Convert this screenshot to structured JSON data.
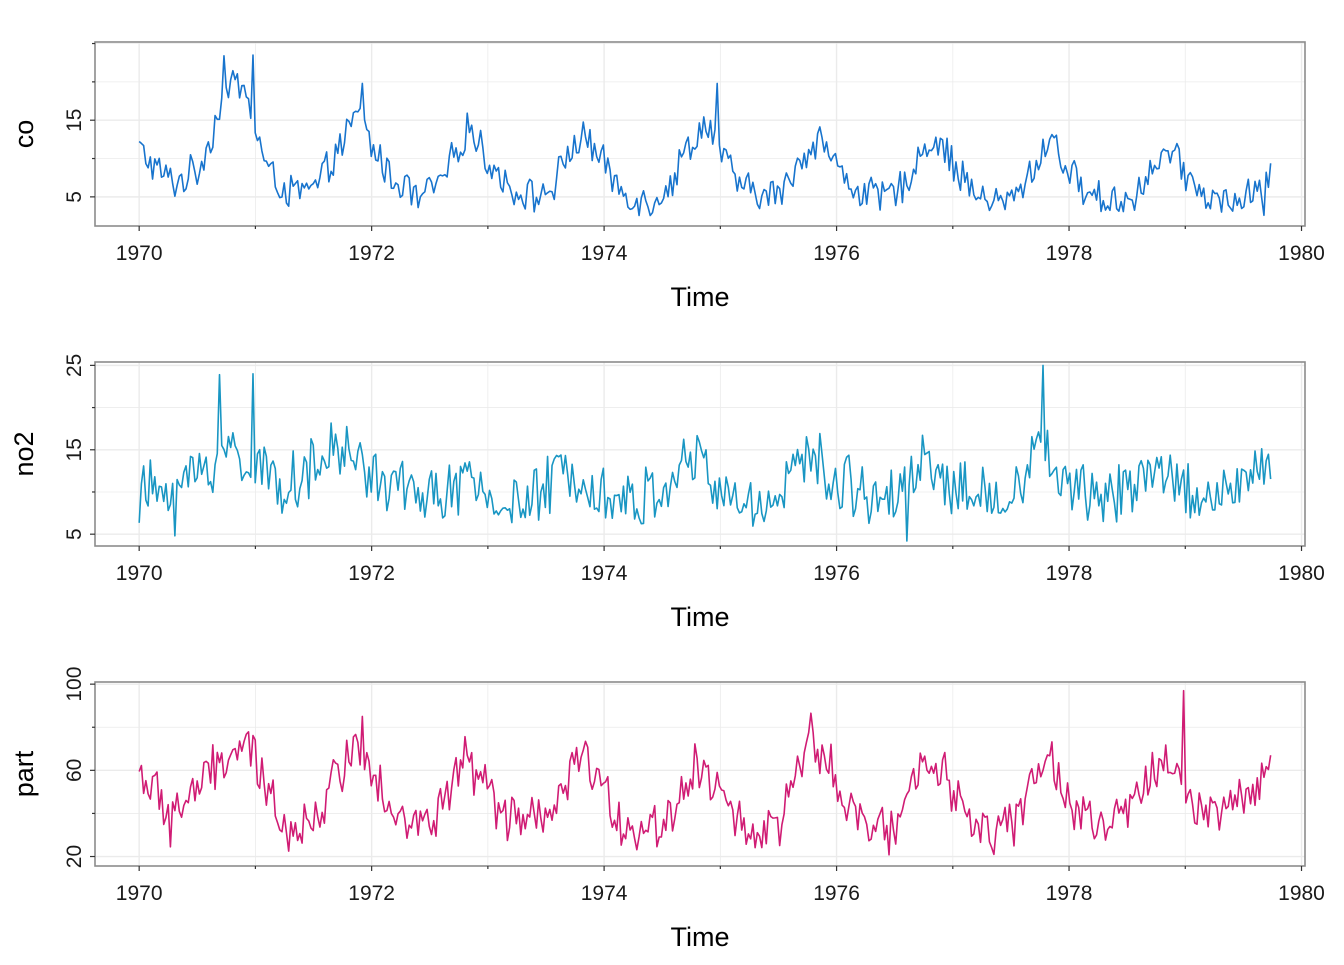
{
  "chart_data": [
    {
      "type": "line",
      "xlabel": "Time",
      "ylabel": "co",
      "xlim": [
        1969.62,
        1980.03
      ],
      "ylim": [
        1.2,
        25.2
      ],
      "x_ticks": [
        "1970",
        "1972",
        "1974",
        "1976",
        "1978",
        "1980"
      ],
      "y_ticks": [
        "5",
        "15"
      ],
      "color": "#1874cd",
      "x_start": 1970.0,
      "x_step": 0.0192,
      "keypoints": [
        [
          1970.0,
          11.5
        ],
        [
          1970.1,
          9.2
        ],
        [
          1970.3,
          6.8
        ],
        [
          1970.5,
          8.5
        ],
        [
          1970.6,
          12.0
        ],
        [
          1970.7,
          17.0
        ],
        [
          1970.8,
          20.0
        ],
        [
          1970.9,
          19.0
        ],
        [
          1971.0,
          14.0
        ],
        [
          1971.1,
          8.5
        ],
        [
          1971.3,
          5.5
        ],
        [
          1971.5,
          5.8
        ],
        [
          1971.6,
          8.0
        ],
        [
          1971.8,
          13.5
        ],
        [
          1971.9,
          16.0
        ],
        [
          1972.0,
          11.5
        ],
        [
          1972.2,
          7.0
        ],
        [
          1972.4,
          5.5
        ],
        [
          1972.6,
          6.5
        ],
        [
          1972.7,
          10.0
        ],
        [
          1972.85,
          14.5
        ],
        [
          1973.0,
          9.5
        ],
        [
          1973.2,
          6.0
        ],
        [
          1973.4,
          5.0
        ],
        [
          1973.55,
          6.0
        ],
        [
          1973.7,
          11.0
        ],
        [
          1973.85,
          13.0
        ],
        [
          1974.0,
          9.0
        ],
        [
          1974.2,
          5.0
        ],
        [
          1974.4,
          4.5
        ],
        [
          1974.55,
          6.0
        ],
        [
          1974.7,
          11.0
        ],
        [
          1974.9,
          15.0
        ],
        [
          1975.0,
          10.5
        ],
        [
          1975.2,
          6.0
        ],
        [
          1975.4,
          5.0
        ],
        [
          1975.55,
          6.0
        ],
        [
          1975.7,
          10.0
        ],
        [
          1975.85,
          13.0
        ],
        [
          1976.0,
          9.0
        ],
        [
          1976.2,
          5.5
        ],
        [
          1976.4,
          5.0
        ],
        [
          1976.55,
          6.0
        ],
        [
          1976.7,
          10.0
        ],
        [
          1976.85,
          13.0
        ],
        [
          1977.0,
          9.5
        ],
        [
          1977.2,
          5.0
        ],
        [
          1977.4,
          4.2
        ],
        [
          1977.55,
          5.0
        ],
        [
          1977.7,
          9.0
        ],
        [
          1977.85,
          13.0
        ],
        [
          1978.0,
          8.0
        ],
        [
          1978.2,
          5.0
        ],
        [
          1978.4,
          4.5
        ],
        [
          1978.55,
          5.0
        ],
        [
          1978.7,
          8.0
        ],
        [
          1978.85,
          11.0
        ],
        [
          1979.0,
          8.0
        ],
        [
          1979.2,
          4.8
        ],
        [
          1979.4,
          4.2
        ],
        [
          1979.55,
          5.0
        ],
        [
          1979.65,
          6.5
        ],
        [
          1979.75,
          8.0
        ]
      ],
      "noise_amp": 2.6,
      "clamp": [
        2.5,
        23.5
      ],
      "spikes": [
        [
          1970.72,
          23.4
        ],
        [
          1970.97,
          23.5
        ],
        [
          1971.92,
          19.8
        ],
        [
          1974.97,
          19.8
        ],
        [
          1972.4,
          3.6
        ],
        [
          1979.67,
          2.6
        ]
      ]
    },
    {
      "type": "line",
      "xlabel": "Time",
      "ylabel": "no2",
      "xlim": [
        1969.62,
        1980.03
      ],
      "ylim": [
        3.6,
        25.4
      ],
      "x_ticks": [
        "1970",
        "1972",
        "1974",
        "1976",
        "1978",
        "1980"
      ],
      "y_ticks": [
        "5",
        "15",
        "25"
      ],
      "color": "#1996c3",
      "x_start": 1970.0,
      "x_step": 0.0192,
      "keypoints": [
        [
          1970.0,
          9.5
        ],
        [
          1970.2,
          10.5
        ],
        [
          1970.4,
          11.0
        ],
        [
          1970.6,
          13.5
        ],
        [
          1970.8,
          15.0
        ],
        [
          1971.0,
          13.0
        ],
        [
          1971.2,
          11.0
        ],
        [
          1971.4,
          11.5
        ],
        [
          1971.6,
          14.0
        ],
        [
          1971.8,
          15.0
        ],
        [
          1972.0,
          12.0
        ],
        [
          1972.3,
          10.0
        ],
        [
          1972.6,
          9.5
        ],
        [
          1972.8,
          11.0
        ],
        [
          1973.0,
          9.5
        ],
        [
          1973.2,
          8.5
        ],
        [
          1973.4,
          9.0
        ],
        [
          1973.6,
          12.0
        ],
        [
          1973.8,
          13.0
        ],
        [
          1974.0,
          10.0
        ],
        [
          1974.2,
          9.0
        ],
        [
          1974.4,
          9.5
        ],
        [
          1974.6,
          12.0
        ],
        [
          1974.8,
          14.0
        ],
        [
          1975.0,
          10.0
        ],
        [
          1975.2,
          8.0
        ],
        [
          1975.4,
          9.0
        ],
        [
          1975.6,
          12.0
        ],
        [
          1975.8,
          14.0
        ],
        [
          1976.0,
          11.0
        ],
        [
          1976.2,
          10.5
        ],
        [
          1976.4,
          9.5
        ],
        [
          1976.6,
          12.0
        ],
        [
          1976.8,
          14.0
        ],
        [
          1977.0,
          10.5
        ],
        [
          1977.2,
          9.5
        ],
        [
          1977.4,
          9.5
        ],
        [
          1977.6,
          11.5
        ],
        [
          1977.8,
          15.0
        ],
        [
          1978.0,
          10.0
        ],
        [
          1978.2,
          9.5
        ],
        [
          1978.4,
          10.0
        ],
        [
          1978.6,
          12.0
        ],
        [
          1978.8,
          13.0
        ],
        [
          1979.0,
          10.0
        ],
        [
          1979.2,
          9.5
        ],
        [
          1979.4,
          10.0
        ],
        [
          1979.6,
          12.0
        ],
        [
          1979.75,
          12.5
        ]
      ],
      "noise_amp": 4.2,
      "clamp": [
        4.6,
        24.0
      ],
      "spikes": [
        [
          1970.7,
          23.9
        ],
        [
          1970.98,
          24.0
        ],
        [
          1977.78,
          25.0
        ],
        [
          1976.6,
          4.2
        ],
        [
          1970.3,
          4.8
        ]
      ]
    },
    {
      "type": "line",
      "xlabel": "Time",
      "ylabel": "part",
      "xlim": [
        1969.62,
        1980.03
      ],
      "ylim": [
        15.6,
        101.0
      ],
      "x_ticks": [
        "1970",
        "1972",
        "1974",
        "1976",
        "1978",
        "1980"
      ],
      "y_ticks": [
        "20",
        "60",
        "100"
      ],
      "color": "#d01c74",
      "x_start": 1970.0,
      "x_step": 0.0192,
      "keypoints": [
        [
          1970.0,
          60.0
        ],
        [
          1970.1,
          52.0
        ],
        [
          1970.25,
          42.0
        ],
        [
          1970.4,
          45.0
        ],
        [
          1970.6,
          58.0
        ],
        [
          1970.8,
          68.0
        ],
        [
          1970.95,
          70.0
        ],
        [
          1971.1,
          50.0
        ],
        [
          1971.3,
          35.0
        ],
        [
          1971.5,
          36.0
        ],
        [
          1971.65,
          52.0
        ],
        [
          1971.8,
          68.0
        ],
        [
          1971.95,
          70.0
        ],
        [
          1972.1,
          50.0
        ],
        [
          1972.3,
          36.0
        ],
        [
          1972.5,
          34.0
        ],
        [
          1972.65,
          50.0
        ],
        [
          1972.8,
          65.0
        ],
        [
          1972.95,
          55.0
        ],
        [
          1973.1,
          40.0
        ],
        [
          1973.3,
          35.0
        ],
        [
          1973.5,
          36.0
        ],
        [
          1973.65,
          50.0
        ],
        [
          1973.8,
          67.0
        ],
        [
          1973.95,
          55.0
        ],
        [
          1974.1,
          38.0
        ],
        [
          1974.3,
          33.0
        ],
        [
          1974.5,
          34.0
        ],
        [
          1974.65,
          48.0
        ],
        [
          1974.8,
          65.0
        ],
        [
          1974.95,
          55.0
        ],
        [
          1975.1,
          38.0
        ],
        [
          1975.3,
          31.0
        ],
        [
          1975.5,
          35.0
        ],
        [
          1975.65,
          55.0
        ],
        [
          1975.8,
          72.0
        ],
        [
          1975.95,
          60.0
        ],
        [
          1976.1,
          40.0
        ],
        [
          1976.3,
          32.0
        ],
        [
          1976.5,
          35.0
        ],
        [
          1976.65,
          55.0
        ],
        [
          1976.8,
          70.0
        ],
        [
          1976.95,
          55.0
        ],
        [
          1977.1,
          40.0
        ],
        [
          1977.3,
          30.0
        ],
        [
          1977.5,
          33.0
        ],
        [
          1977.65,
          50.0
        ],
        [
          1977.8,
          68.0
        ],
        [
          1977.95,
          50.0
        ],
        [
          1978.1,
          38.0
        ],
        [
          1978.3,
          33.0
        ],
        [
          1978.5,
          40.0
        ],
        [
          1978.65,
          55.0
        ],
        [
          1978.8,
          62.0
        ],
        [
          1978.95,
          60.0
        ],
        [
          1979.1,
          45.0
        ],
        [
          1979.3,
          40.0
        ],
        [
          1979.5,
          48.0
        ],
        [
          1979.65,
          55.0
        ],
        [
          1979.75,
          62.0
        ]
      ],
      "noise_amp": 13.0,
      "clamp": [
        21.0,
        90.0
      ],
      "spikes": [
        [
          1971.92,
          85.0
        ],
        [
          1975.78,
          86.5
        ],
        [
          1978.98,
          97.0
        ],
        [
          1976.45,
          20.8
        ],
        [
          1970.27,
          24.5
        ],
        [
          1971.28,
          22.5
        ]
      ]
    }
  ]
}
